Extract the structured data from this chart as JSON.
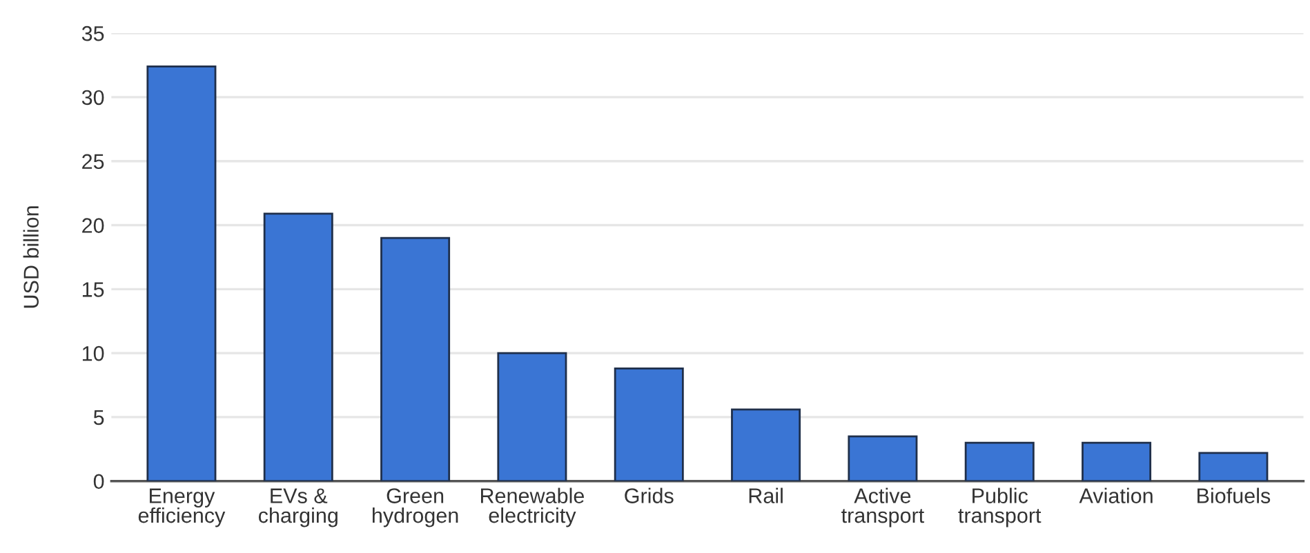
{
  "chart_data": {
    "type": "bar",
    "ylabel": "USD billion",
    "categories": [
      "Energy\nefficiency",
      "EVs &\ncharging",
      "Green\nhydrogen",
      "Renewable\nelectricity",
      "Grids",
      "Rail",
      "Active\ntransport",
      "Public\ntransport",
      "Aviation",
      "Biofuels"
    ],
    "values": [
      32.4,
      20.9,
      19.0,
      10.0,
      8.8,
      5.6,
      3.5,
      3.0,
      3.0,
      2.2
    ],
    "color": "#3a75d4",
    "ylim": [
      0,
      35
    ],
    "yticks": [
      0,
      5,
      10,
      15,
      20,
      25,
      30,
      35
    ],
    "grid": "y"
  }
}
